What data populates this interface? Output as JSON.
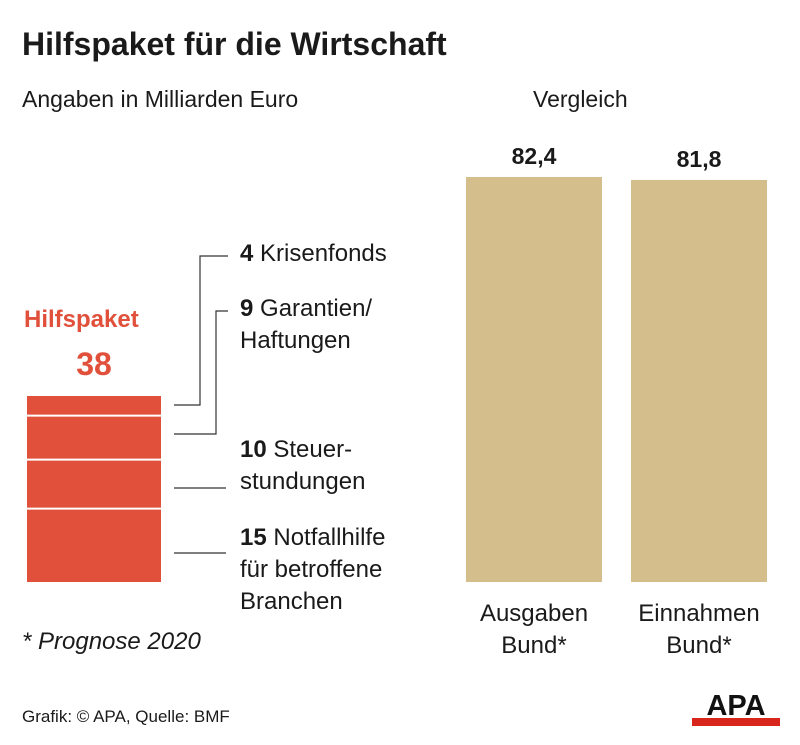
{
  "title": "Hilfspaket für die Wirtschaft",
  "subtitle": "Angaben in Milliarden Euro",
  "comparison_heading": "Vergleich",
  "footnote": "* Prognose 2020",
  "source": "Grafik: © APA, Quelle: BMF",
  "logo_text": "APA",
  "colors": {
    "hilfspaket": "#e0503a",
    "vergleich": "#d4bf8c",
    "line": "#333333",
    "logo_red": "#d9261c"
  },
  "chart_data": [
    {
      "type": "bar",
      "stacked": true,
      "title": "Hilfspaket",
      "total": 38,
      "total_label": "38",
      "unit": "Milliarden Euro",
      "components": [
        {
          "value": 4,
          "value_label": "4",
          "label_lines": [
            "Krisenfonds"
          ]
        },
        {
          "value": 9,
          "value_label": "9",
          "label_lines": [
            "Garantien/",
            "Haftungen"
          ]
        },
        {
          "value": 10,
          "value_label": "10",
          "label_lines": [
            "Steuer-",
            "stundungen"
          ]
        },
        {
          "value": 15,
          "value_label": "15",
          "label_lines": [
            "Notfallhilfe",
            "für betroffene",
            "Branchen"
          ]
        }
      ]
    },
    {
      "type": "bar",
      "title": "Vergleich",
      "unit": "Milliarden Euro",
      "bars": [
        {
          "value": 82.4,
          "value_label": "82,4",
          "label_lines": [
            "Ausgaben",
            "Bund*"
          ]
        },
        {
          "value": 81.8,
          "value_label": "81,8",
          "label_lines": [
            "Einnahmen",
            "Bund*"
          ]
        }
      ]
    }
  ]
}
